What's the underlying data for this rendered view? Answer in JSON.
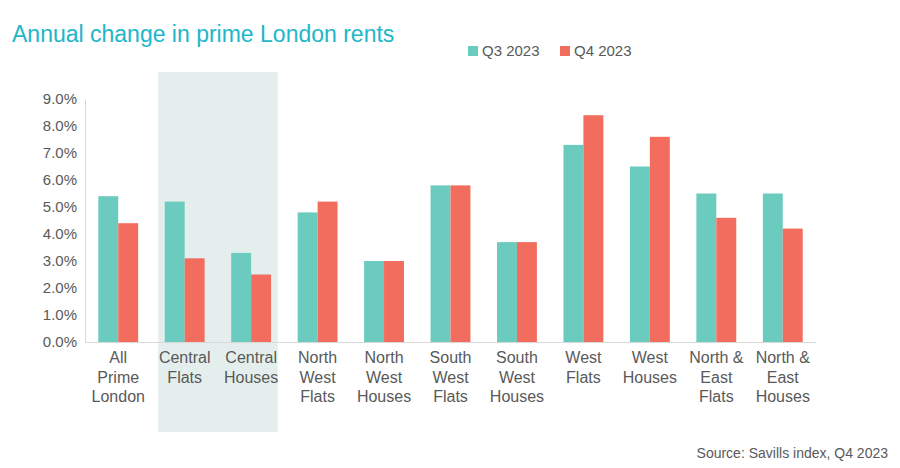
{
  "chart_data": {
    "type": "bar",
    "title": "Annual change in prime London rents",
    "source": "Source: Savills index, Q4 2023",
    "categories": [
      "All Prime London",
      "Central Flats",
      "Central Houses",
      "North West Flats",
      "North West Houses",
      "South West Flats",
      "South West Houses",
      "West Flats",
      "West Houses",
      "North & East Flats",
      "North & East Houses"
    ],
    "series": [
      {
        "name": "Q3 2023",
        "color": "#6ccbbf",
        "values": [
          5.4,
          5.2,
          3.3,
          4.8,
          3.0,
          5.8,
          3.7,
          7.3,
          6.5,
          5.5,
          5.5
        ]
      },
      {
        "name": "Q4 2023",
        "color": "#f26d5e",
        "values": [
          4.4,
          3.1,
          2.5,
          5.2,
          3.0,
          5.8,
          3.7,
          8.4,
          7.6,
          4.6,
          4.2
        ]
      }
    ],
    "ylim": [
      0,
      9
    ],
    "yticks": [
      {
        "value": 0,
        "label": "0.0%"
      },
      {
        "value": 1,
        "label": "1.0%"
      },
      {
        "value": 2,
        "label": "2.0%"
      },
      {
        "value": 3,
        "label": "3.0%"
      },
      {
        "value": 4,
        "label": "4.0%"
      },
      {
        "value": 5,
        "label": "5.0%"
      },
      {
        "value": 6,
        "label": "6.0%"
      },
      {
        "value": 7,
        "label": "7.0%"
      },
      {
        "value": 8,
        "label": "8.0%"
      },
      {
        "value": 9,
        "label": "9.0%"
      }
    ],
    "grid": false,
    "legend": "top-right"
  }
}
